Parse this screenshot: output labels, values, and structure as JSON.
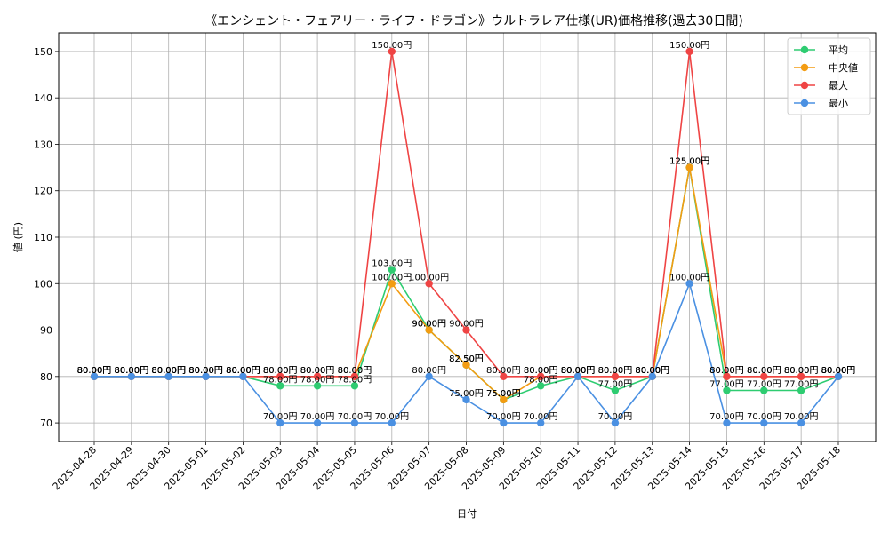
{
  "chart_data": {
    "type": "line",
    "title": "《エンシェント・フェアリー・ライフ・ドラゴン》ウルトラレア仕様(UR)価格推移(過去30日間)",
    "xlabel": "日付",
    "ylabel": "値 (円)",
    "ylim": [
      66,
      154
    ],
    "yticks": [
      70,
      80,
      90,
      100,
      110,
      120,
      130,
      140,
      150
    ],
    "grid": true,
    "legend_position": "top-right",
    "value_suffix": "円",
    "categories": [
      "2025-04-28",
      "2025-04-29",
      "2025-04-30",
      "2025-05-01",
      "2025-05-02",
      "2025-05-03",
      "2025-05-04",
      "2025-05-05",
      "2025-05-06",
      "2025-05-07",
      "2025-05-08",
      "2025-05-09",
      "2025-05-10",
      "2025-05-11",
      "2025-05-12",
      "2025-05-13",
      "2025-05-14",
      "2025-05-15",
      "2025-05-16",
      "2025-05-17",
      "2025-05-18"
    ],
    "series": [
      {
        "name": "平均",
        "color": "#2ecc71",
        "values": [
          80,
          80,
          80,
          80,
          80,
          78,
          78,
          78,
          103,
          90,
          82.5,
          75,
          78,
          80,
          77,
          80,
          125,
          77,
          77,
          77,
          80
        ]
      },
      {
        "name": "中央値",
        "color": "#f39c12",
        "values": [
          80,
          80,
          80,
          80,
          80,
          80,
          80,
          80,
          100,
          90,
          82.5,
          75,
          80,
          80,
          80,
          80,
          125,
          80,
          80,
          80,
          80
        ]
      },
      {
        "name": "最大",
        "color": "#ef4444",
        "values": [
          80,
          80,
          80,
          80,
          80,
          80,
          80,
          80,
          150,
          100,
          90,
          80,
          80,
          80,
          80,
          80,
          150,
          80,
          80,
          80,
          80
        ]
      },
      {
        "name": "最小",
        "color": "#4a90e2",
        "values": [
          80,
          80,
          80,
          80,
          80,
          70,
          70,
          70,
          70,
          80,
          75,
          70,
          70,
          80,
          70,
          80,
          100,
          70,
          70,
          70,
          80
        ]
      }
    ]
  }
}
